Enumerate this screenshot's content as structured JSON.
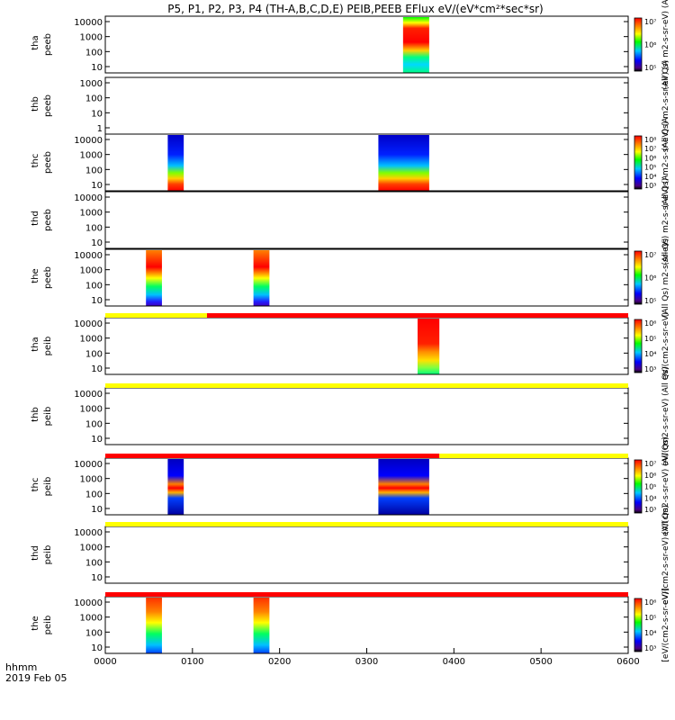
{
  "title": "P5, P1, P2, P3, P4 (TH-A,B,C,D,E) PEIB,PEEB EFlux eV/(eV*cm²*sec*sr)",
  "footer": {
    "axis_label": "hhmm",
    "date": "2019 Feb 05"
  },
  "colors": {
    "flag_yellow": "#ffff00",
    "flag_red": "#ff0000",
    "axis": "#000000"
  },
  "chart_data": {
    "type": "heatmap",
    "x_ticks": [
      "0000",
      "0100",
      "0200",
      "0300",
      "0400",
      "0500",
      "0600"
    ],
    "xlim": [
      "0000",
      "0600"
    ],
    "y_scale": "log",
    "panels": [
      {
        "ylabel": [
          "tha",
          "peeb"
        ],
        "y_ticks": [
          "10",
          "100",
          "1000",
          "10000"
        ],
        "cbar_ticks": [
          "10⁵",
          "10⁶",
          "10⁷"
        ],
        "cbar_label": "(All Qs) m2-s-sr-eV) (A",
        "blocks": [
          {
            "start": "0325",
            "end": "0343",
            "style": "peeb_hot"
          }
        ]
      },
      {
        "ylabel": [
          "thb",
          "peeb"
        ],
        "y_ticks": [
          "1",
          "10",
          "100",
          "1000"
        ],
        "cbar_ticks": [],
        "cbar_label": "(All Qs) m2-s-sr-eV) (A",
        "blocks": []
      },
      {
        "ylabel": [
          "thc",
          "peeb"
        ],
        "y_ticks": [
          "10",
          "100",
          "1000",
          "10000"
        ],
        "cbar_ticks": [
          "10³",
          "10⁴",
          "10⁵",
          "10⁶",
          "10⁷",
          "10⁸"
        ],
        "cbar_label": "(All Qs) m2-s-sr-eV) (A",
        "blocks": [
          {
            "start": "0043",
            "end": "0054",
            "style": "peeb_wide"
          },
          {
            "start": "0308",
            "end": "0343",
            "style": "peeb_wide"
          }
        ]
      },
      {
        "ylabel": [
          "thd",
          "peeb"
        ],
        "y_ticks": [
          "10",
          "100",
          "1000",
          "10000"
        ],
        "cbar_ticks": [],
        "cbar_label": "(All Qs) m2-s-sr-eV) (A",
        "blocks": []
      },
      {
        "ylabel": [
          "the",
          "peeb"
        ],
        "y_ticks": [
          "10",
          "100",
          "1000",
          "10000"
        ],
        "cbar_ticks": [
          "10⁵",
          "10⁶",
          "10⁷"
        ],
        "cbar_label": "(All Qs) m2-s-sr-eV)",
        "blocks": [
          {
            "start": "0028",
            "end": "0039",
            "style": "peeb_the"
          },
          {
            "start": "0142",
            "end": "0153",
            "style": "peeb_the"
          }
        ]
      },
      {
        "ylabel": [
          "tha",
          "peib"
        ],
        "y_ticks": [
          "10",
          "100",
          "1000",
          "10000"
        ],
        "cbar_ticks": [
          "10³",
          "10⁴",
          "10⁵",
          "10⁶"
        ],
        "cbar_label": "eV/(cm2-s-sr-eV)",
        "blocks": [
          {
            "start": "0335",
            "end": "0350",
            "style": "peib_hot"
          }
        ]
      },
      {
        "ylabel": [
          "thb",
          "peib"
        ],
        "y_ticks": [
          "10",
          "100",
          "1000",
          "10000"
        ],
        "cbar_ticks": [],
        "cbar_label": "eV/(cm2-s-sr-eV) (All Qs)",
        "blocks": []
      },
      {
        "ylabel": [
          "thc",
          "peib"
        ],
        "y_ticks": [
          "10",
          "100",
          "1000",
          "10000"
        ],
        "cbar_ticks": [
          "10³",
          "10⁴",
          "10⁵",
          "10⁶",
          "10⁷"
        ],
        "cbar_label": "eV/(cm2-s-sr-eV) (All Qs)",
        "blocks": [
          {
            "start": "0043",
            "end": "0054",
            "style": "peib_thc"
          },
          {
            "start": "0308",
            "end": "0343",
            "style": "peib_thc"
          }
        ]
      },
      {
        "ylabel": [
          "thd",
          "peib"
        ],
        "y_ticks": [
          "10",
          "100",
          "1000",
          "10000"
        ],
        "cbar_ticks": [],
        "cbar_label": "eV/(cm2-s-sr-eV) (All Qs)",
        "blocks": []
      },
      {
        "ylabel": [
          "the",
          "peib"
        ],
        "y_ticks": [
          "10",
          "100",
          "1000",
          "10000"
        ],
        "cbar_ticks": [
          "10³",
          "10⁴",
          "10⁵",
          "10⁶"
        ],
        "cbar_label": "[eV/(cm2-s-sr-eV)]",
        "blocks": [
          {
            "start": "0028",
            "end": "0039",
            "style": "peib_the"
          },
          {
            "start": "0142",
            "end": "0153",
            "style": "peib_the"
          }
        ]
      }
    ],
    "flag_bars": [
      {
        "after_panel": 4,
        "segments": [
          {
            "start": "0000",
            "end": "0110",
            "color": "yellow"
          },
          {
            "start": "0110",
            "end": "0600",
            "color": "red"
          }
        ]
      },
      {
        "after_panel": 5,
        "segments": [
          {
            "start": "0000",
            "end": "0600",
            "color": "yellow"
          }
        ]
      },
      {
        "after_panel": 6,
        "segments": [
          {
            "start": "0000",
            "end": "0350",
            "color": "red"
          },
          {
            "start": "0350",
            "end": "0600",
            "color": "yellow"
          }
        ]
      },
      {
        "after_panel": 7,
        "segments": [
          {
            "start": "0000",
            "end": "0600",
            "color": "yellow"
          }
        ]
      },
      {
        "after_panel": 8,
        "segments": [
          {
            "start": "0000",
            "end": "0600",
            "color": "red"
          }
        ]
      }
    ]
  }
}
